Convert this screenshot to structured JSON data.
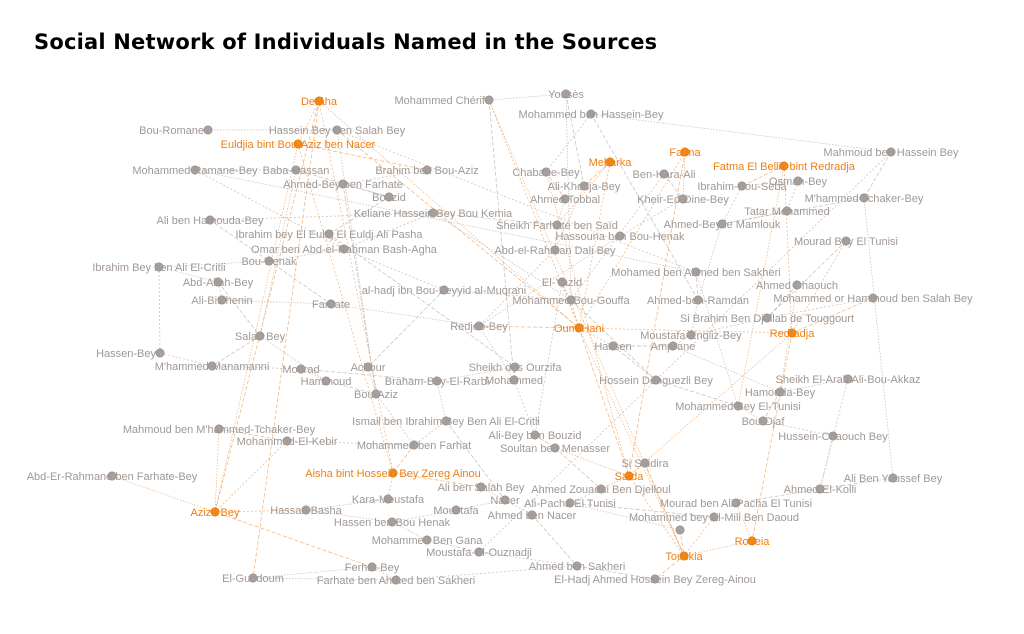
{
  "title": "Social Network of Individuals Named in the Sources",
  "colors": {
    "person": "#a8a09d",
    "person_stroke": "#8f8784",
    "woman": "#f28a1a",
    "woman_stroke": "#d9730a",
    "label_person": "#a09893",
    "label_woman": "#ef7f10",
    "edge_person": "#bdb6b2",
    "edge_woman": "#f2a866"
  },
  "nodes": [
    {
      "id": "n01",
      "label": "Yousès",
      "group": "person"
    },
    {
      "id": "n02",
      "label": "Mohammed Chérif",
      "group": "person"
    },
    {
      "id": "n03",
      "label": "Mohammed ben Hassein-Bey",
      "group": "person"
    },
    {
      "id": "n04",
      "label": "Derâha",
      "group": "woman"
    },
    {
      "id": "n05",
      "label": "Bou-Romane",
      "group": "person"
    },
    {
      "id": "n06",
      "label": "Hassein Bey ben Salah Bey",
      "group": "person"
    },
    {
      "id": "n07",
      "label": "Euldjia bint Bou-Aziz ben Nacer",
      "group": "woman"
    },
    {
      "id": "n08",
      "label": "Mahmoud ben Hassein Bey",
      "group": "person"
    },
    {
      "id": "n09",
      "label": "Fatma",
      "group": "woman"
    },
    {
      "id": "n10",
      "label": "Mebarka",
      "group": "woman"
    },
    {
      "id": "n11",
      "label": "Fatma El Bellik bint Redradja",
      "group": "woman"
    },
    {
      "id": "n12",
      "label": "Mohammed Ramane-Bey",
      "group": "person"
    },
    {
      "id": "n13",
      "label": "Baba-Hassan",
      "group": "person"
    },
    {
      "id": "n14",
      "label": "Brahim ben Bou-Aziz",
      "group": "person"
    },
    {
      "id": "n15",
      "label": "Chabane-Bey",
      "group": "person"
    },
    {
      "id": "n16",
      "label": "Ben-Hara-Ali",
      "group": "person"
    },
    {
      "id": "n17",
      "label": "Osman-Bey",
      "group": "person"
    },
    {
      "id": "n18",
      "label": "Ahmed-Bey ben Farhate",
      "group": "person"
    },
    {
      "id": "n19",
      "label": "Ali-Khodja-Bey",
      "group": "person"
    },
    {
      "id": "n20",
      "label": "Ibrahim-Bou-Seba",
      "group": "person"
    },
    {
      "id": "n21",
      "label": "Bouzid",
      "group": "person"
    },
    {
      "id": "n22",
      "label": "Ahmed Tobbal",
      "group": "person"
    },
    {
      "id": "n23",
      "label": "Kheir-Ed-Dine-Bey",
      "group": "person"
    },
    {
      "id": "n24",
      "label": "M'hammed-Tchaker-Bey",
      "group": "person"
    },
    {
      "id": "n25",
      "label": "Ali ben Hamouda-Bey",
      "group": "person"
    },
    {
      "id": "n26",
      "label": "Keliane Hassein Bey Bou Kemia",
      "group": "person"
    },
    {
      "id": "n27",
      "label": "Tatar Mohammed",
      "group": "person"
    },
    {
      "id": "n28",
      "label": "Sheikh Farhate ben Saïd",
      "group": "person"
    },
    {
      "id": "n29",
      "label": "Ahmed-Bey le Mamlouk",
      "group": "person"
    },
    {
      "id": "n30",
      "label": "Ibrahim bey El Euldj El Euldj Ali Pasha",
      "group": "person"
    },
    {
      "id": "n31",
      "label": "Hassouna ben Bou-Henak",
      "group": "person"
    },
    {
      "id": "n32",
      "label": "Mourad Bey El Tunisi",
      "group": "person"
    },
    {
      "id": "n33",
      "label": "Omar ben Abd-el-Rahman Bash-Agha",
      "group": "person"
    },
    {
      "id": "n34",
      "label": "Abd-el-Rahman Dali Bey",
      "group": "person"
    },
    {
      "id": "n35",
      "label": "Bou-Henak",
      "group": "person"
    },
    {
      "id": "n36",
      "label": "Ibrahim Bey ben Ali El-Critli",
      "group": "person"
    },
    {
      "id": "n37",
      "label": "Mohamed ben Ahmed ben Sakheri",
      "group": "person"
    },
    {
      "id": "n38",
      "label": "Abd-Allah-Bey",
      "group": "person"
    },
    {
      "id": "n39",
      "label": "El-Yazid",
      "group": "person"
    },
    {
      "id": "n40",
      "label": "Ahmed Chaouch",
      "group": "person"
    },
    {
      "id": "n41",
      "label": "al-hadj ibn Bou-Zeyyid al-Muqrani",
      "group": "person"
    },
    {
      "id": "n42",
      "label": "Ali-Bitchenin",
      "group": "person"
    },
    {
      "id": "n43",
      "label": "Mohammed Bou-Gouffa",
      "group": "person"
    },
    {
      "id": "n44",
      "label": "Ahmed-ben-Ramdan",
      "group": "person"
    },
    {
      "id": "n45",
      "label": "Mohammed or Hammoud ben Salah Bey",
      "group": "person"
    },
    {
      "id": "n46",
      "label": "Farhate",
      "group": "person"
    },
    {
      "id": "n47",
      "label": "Si Brahim Ben Djellab de Touggourt",
      "group": "person"
    },
    {
      "id": "n48",
      "label": "Redjeb-Bey",
      "group": "person"
    },
    {
      "id": "n49",
      "label": "Oum-Hani",
      "group": "woman"
    },
    {
      "id": "n50",
      "label": "Salah Bey",
      "group": "person"
    },
    {
      "id": "n51",
      "label": "Moustafa-Engliz-Bey",
      "group": "person"
    },
    {
      "id": "n52",
      "label": "Redradja",
      "group": "woman"
    },
    {
      "id": "n53",
      "label": "Hassen-Bey",
      "group": "person"
    },
    {
      "id": "n54",
      "label": "Hassen",
      "group": "person"
    },
    {
      "id": "n55",
      "label": "Amprane",
      "group": "person"
    },
    {
      "id": "n56",
      "label": "M'hammed Manamanni",
      "group": "person"
    },
    {
      "id": "n57",
      "label": "Mourad",
      "group": "person"
    },
    {
      "id": "n58",
      "label": "Achour",
      "group": "person"
    },
    {
      "id": "n59",
      "label": "Sheikh des Ourzifa",
      "group": "person"
    },
    {
      "id": "n60",
      "label": "Hammoud",
      "group": "person"
    },
    {
      "id": "n61",
      "label": "Braham-Bey-El-Rarbi",
      "group": "person"
    },
    {
      "id": "n62",
      "label": "Mohammed",
      "group": "person"
    },
    {
      "id": "n63",
      "label": "Hossein Denguezli Bey",
      "group": "person"
    },
    {
      "id": "n64",
      "label": "Sheikh El-Arab Ali-Bou-Akkaz",
      "group": "person"
    },
    {
      "id": "n65",
      "label": "Bou-Aziz",
      "group": "person"
    },
    {
      "id": "n66",
      "label": "Hamouda-Bey",
      "group": "person"
    },
    {
      "id": "n67",
      "label": "Mohammed Bey El-Tunisi",
      "group": "person"
    },
    {
      "id": "n68",
      "label": "Ismail ben Ibrahim Bey Ben Ali El-Critli",
      "group": "person"
    },
    {
      "id": "n69",
      "label": "Mahmoud ben M'hammed-Tchaker-Bey",
      "group": "person"
    },
    {
      "id": "n70",
      "label": "Bou-Djaf",
      "group": "person"
    },
    {
      "id": "n71",
      "label": "Ali-Bey ben Bouzid",
      "group": "person"
    },
    {
      "id": "n72",
      "label": "Hussein-Chaouch Bey",
      "group": "person"
    },
    {
      "id": "n73",
      "label": "Mohammed-El-Kebir",
      "group": "person"
    },
    {
      "id": "n74",
      "label": "Mohammed ben Farhat",
      "group": "person"
    },
    {
      "id": "n75",
      "label": "Soultan ben Menasser",
      "group": "person"
    },
    {
      "id": "n76",
      "label": "Si Saidira",
      "group": "person"
    },
    {
      "id": "n77",
      "label": "Abd-Er-Rahmane ben Farhate-Bey",
      "group": "person"
    },
    {
      "id": "n78",
      "label": "Aisha bint Hossein Bey Zereg Ainou",
      "group": "woman"
    },
    {
      "id": "n79",
      "label": "Saïda",
      "group": "woman"
    },
    {
      "id": "n80",
      "label": "Ali Ben Youssef Bey",
      "group": "person"
    },
    {
      "id": "n81",
      "label": "Ali ben Salah Bey",
      "group": "person"
    },
    {
      "id": "n82",
      "label": "Ahmed Zouaoui Ben Djelloul",
      "group": "person"
    },
    {
      "id": "n83",
      "label": "Ahmed-El-Kolli",
      "group": "person"
    },
    {
      "id": "n84",
      "label": "Kara-Moustafa",
      "group": "person"
    },
    {
      "id": "n85",
      "label": "Nacer",
      "group": "person"
    },
    {
      "id": "n86",
      "label": "Ali-Pacha El Tunisi",
      "group": "person"
    },
    {
      "id": "n87",
      "label": "Mourad ben Ali Pacha El Tunisi",
      "group": "person"
    },
    {
      "id": "n88",
      "label": "Aziza Bey",
      "group": "woman"
    },
    {
      "id": "n89",
      "label": "Hassan Basha",
      "group": "person"
    },
    {
      "id": "n90",
      "label": "Moustafa",
      "group": "person"
    },
    {
      "id": "n91",
      "label": "Ahmed ben Nacer",
      "group": "person"
    },
    {
      "id": "n92",
      "label": "Hassen ben Bou Henak",
      "group": "person"
    },
    {
      "id": "n93",
      "label": "Mohammed bey El-Mili Ben Daoud",
      "group": "person"
    },
    {
      "id": "n94",
      "label": "Mohammed Ben Gana",
      "group": "person"
    },
    {
      "id": "n95",
      "label": "Roneia",
      "group": "woman"
    },
    {
      "id": "n96",
      "label": "Moustafa-El-Ouznadji",
      "group": "person"
    },
    {
      "id": "n97",
      "label": "Touskia",
      "group": "woman"
    },
    {
      "id": "n98",
      "label": "Ferhat-Bey",
      "group": "person"
    },
    {
      "id": "n99",
      "label": "Ahmed ben Sakheri",
      "group": "person"
    },
    {
      "id": "n100",
      "label": "El-Guedoum",
      "group": "person"
    },
    {
      "id": "n101",
      "label": "Farhate ben Ahmed ben Sakheri",
      "group": "person"
    },
    {
      "id": "n102",
      "label": "El-Hadj Ahmed Hossein Bey Zereg-Ainou",
      "group": "person"
    },
    {
      "id": "n103",
      "label": "",
      "group": "person"
    }
  ],
  "edges": [
    [
      "n04",
      "n07"
    ],
    [
      "n04",
      "n88"
    ],
    [
      "n04",
      "n49"
    ],
    [
      "n04",
      "n78"
    ],
    [
      "n07",
      "n14"
    ],
    [
      "n07",
      "n88"
    ],
    [
      "n07",
      "n78"
    ],
    [
      "n02",
      "n62"
    ],
    [
      "n02",
      "n97"
    ],
    [
      "n02",
      "n49"
    ],
    [
      "n01",
      "n19"
    ],
    [
      "n01",
      "n43"
    ],
    [
      "n03",
      "n15"
    ],
    [
      "n03",
      "n44"
    ],
    [
      "n03",
      "n08"
    ],
    [
      "n06",
      "n37"
    ],
    [
      "n06",
      "n49"
    ],
    [
      "n06",
      "n65"
    ],
    [
      "n09",
      "n49"
    ],
    [
      "n09",
      "n79"
    ],
    [
      "n09",
      "n23"
    ],
    [
      "n10",
      "n49"
    ],
    [
      "n10",
      "n19"
    ],
    [
      "n10",
      "n28"
    ],
    [
      "n11",
      "n52"
    ],
    [
      "n11",
      "n20"
    ],
    [
      "n11",
      "n67"
    ],
    [
      "n08",
      "n96"
    ],
    [
      "n08",
      "n24"
    ],
    [
      "n12",
      "n37"
    ],
    [
      "n12",
      "n33"
    ],
    [
      "n13",
      "n21"
    ],
    [
      "n13",
      "n50"
    ],
    [
      "n14",
      "n18"
    ],
    [
      "n15",
      "n22"
    ],
    [
      "n15",
      "n79"
    ],
    [
      "n16",
      "n43"
    ],
    [
      "n16",
      "n23"
    ],
    [
      "n17",
      "n20"
    ],
    [
      "n17",
      "n27"
    ],
    [
      "n18",
      "n65"
    ],
    [
      "n19",
      "n34"
    ],
    [
      "n20",
      "n29"
    ],
    [
      "n21",
      "n30"
    ],
    [
      "n22",
      "n28"
    ],
    [
      "n23",
      "n31"
    ],
    [
      "n24",
      "n29"
    ],
    [
      "n24",
      "n80"
    ],
    [
      "n25",
      "n26"
    ],
    [
      "n26",
      "n28"
    ],
    [
      "n26",
      "n43"
    ],
    [
      "n27",
      "n29"
    ],
    [
      "n28",
      "n34"
    ],
    [
      "n29",
      "n44"
    ],
    [
      "n30",
      "n33"
    ],
    [
      "n30",
      "n59"
    ],
    [
      "n31",
      "n48"
    ],
    [
      "n32",
      "n52"
    ],
    [
      "n32",
      "n47"
    ],
    [
      "n33",
      "n35"
    ],
    [
      "n34",
      "n48"
    ],
    [
      "n35",
      "n46"
    ],
    [
      "n36",
      "n38"
    ],
    [
      "n36",
      "n53"
    ],
    [
      "n37",
      "n44"
    ],
    [
      "n37",
      "n67"
    ],
    [
      "n38",
      "n42"
    ],
    [
      "n38",
      "n50"
    ],
    [
      "n39",
      "n43"
    ],
    [
      "n39",
      "n71"
    ],
    [
      "n40",
      "n47"
    ],
    [
      "n40",
      "n66"
    ],
    [
      "n41",
      "n43"
    ],
    [
      "n41",
      "n58"
    ],
    [
      "n42",
      "n46"
    ],
    [
      "n43",
      "n49"
    ],
    [
      "n43",
      "n63"
    ],
    [
      "n44",
      "n51"
    ],
    [
      "n45",
      "n47"
    ],
    [
      "n45",
      "n52"
    ],
    [
      "n46",
      "n48"
    ],
    [
      "n47",
      "n51"
    ],
    [
      "n48",
      "n49"
    ],
    [
      "n48",
      "n62"
    ],
    [
      "n49",
      "n54"
    ],
    [
      "n49",
      "n79"
    ],
    [
      "n49",
      "n97"
    ],
    [
      "n49",
      "n52"
    ],
    [
      "n50",
      "n56"
    ],
    [
      "n50",
      "n60"
    ],
    [
      "n51",
      "n55"
    ],
    [
      "n52",
      "n95"
    ],
    [
      "n52",
      "n79"
    ],
    [
      "n53",
      "n56"
    ],
    [
      "n54",
      "n63"
    ],
    [
      "n55",
      "n66"
    ],
    [
      "n56",
      "n57"
    ],
    [
      "n57",
      "n61"
    ],
    [
      "n58",
      "n65"
    ],
    [
      "n59",
      "n62"
    ],
    [
      "n60",
      "n65"
    ],
    [
      "n61",
      "n68"
    ],
    [
      "n62",
      "n71"
    ],
    [
      "n63",
      "n67"
    ],
    [
      "n64",
      "n66"
    ],
    [
      "n64",
      "n83"
    ],
    [
      "n66",
      "n70"
    ],
    [
      "n67",
      "n70"
    ],
    [
      "n68",
      "n74"
    ],
    [
      "n69",
      "n73"
    ],
    [
      "n69",
      "n88"
    ],
    [
      "n70",
      "n72"
    ],
    [
      "n71",
      "n75"
    ],
    [
      "n72",
      "n83"
    ],
    [
      "n73",
      "n74"
    ],
    [
      "n74",
      "n78"
    ],
    [
      "n75",
      "n79"
    ],
    [
      "n76",
      "n79"
    ],
    [
      "n76",
      "n97"
    ],
    [
      "n77",
      "n88"
    ],
    [
      "n78",
      "n84"
    ],
    [
      "n78",
      "n81"
    ],
    [
      "n79",
      "n82"
    ],
    [
      "n79",
      "n97"
    ],
    [
      "n80",
      "n83"
    ],
    [
      "n81",
      "n85"
    ],
    [
      "n82",
      "n86"
    ],
    [
      "n83",
      "n87"
    ],
    [
      "n84",
      "n89"
    ],
    [
      "n85",
      "n91"
    ],
    [
      "n86",
      "n93"
    ],
    [
      "n87",
      "n95"
    ],
    [
      "n88",
      "n89"
    ],
    [
      "n88",
      "n98"
    ],
    [
      "n89",
      "n92"
    ],
    [
      "n90",
      "n92"
    ],
    [
      "n91",
      "n99"
    ],
    [
      "n92",
      "n94"
    ],
    [
      "n93",
      "n97"
    ],
    [
      "n94",
      "n96"
    ],
    [
      "n95",
      "n97"
    ],
    [
      "n96",
      "n99"
    ],
    [
      "n97",
      "n102"
    ],
    [
      "n98",
      "n100"
    ],
    [
      "n98",
      "n101"
    ],
    [
      "n99",
      "n102"
    ],
    [
      "n100",
      "n101"
    ],
    [
      "n101",
      "n99"
    ],
    [
      "n103",
      "n97"
    ],
    [
      "n103",
      "n86"
    ],
    [
      "n65",
      "n74"
    ],
    [
      "n68",
      "n85"
    ],
    [
      "n57",
      "n60"
    ],
    [
      "n33",
      "n26"
    ],
    [
      "n21",
      "n18"
    ],
    [
      "n05",
      "n06"
    ],
    [
      "n12",
      "n13"
    ],
    [
      "n25",
      "n35"
    ],
    [
      "n36",
      "n35"
    ],
    [
      "n39",
      "n49"
    ],
    [
      "n54",
      "n55"
    ],
    [
      "n59",
      "n61"
    ],
    [
      "n73",
      "n88"
    ],
    [
      "n75",
      "n82"
    ],
    [
      "n90",
      "n85"
    ],
    [
      "n41",
      "n33"
    ],
    [
      "n04",
      "n100"
    ],
    [
      "n02",
      "n01"
    ]
  ]
}
